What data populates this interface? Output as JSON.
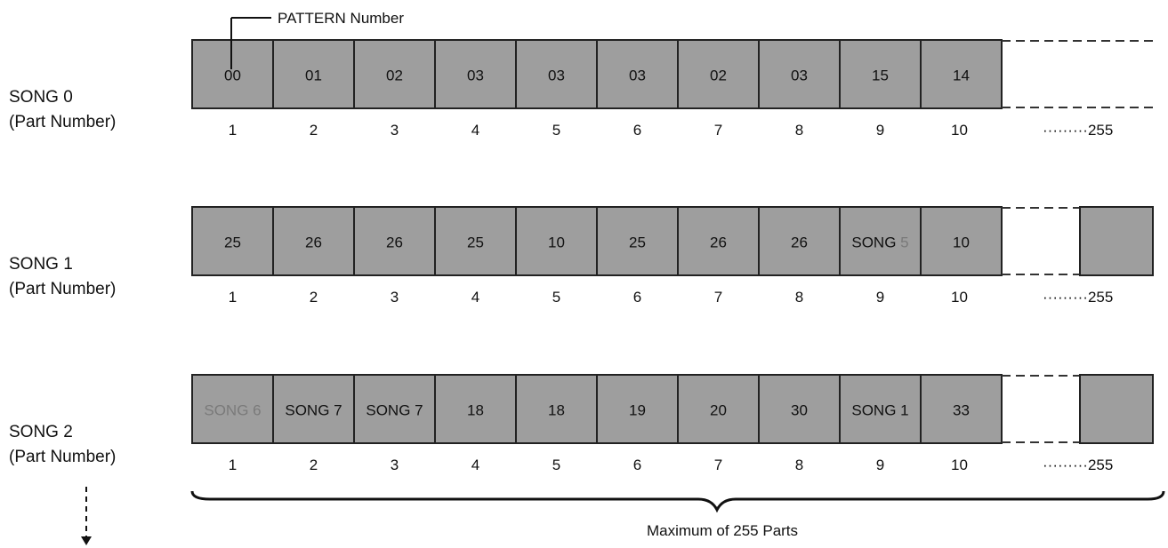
{
  "callout": {
    "pattern_number": "PATTERN Number"
  },
  "footer": {
    "maximum_label": "Maximum of 255 Parts"
  },
  "last_part_label": "·········255",
  "colors": {
    "cell_fill": "#9e9e9e",
    "cell_stroke": "#222222",
    "dim_text": "#7a7a7a"
  },
  "songs": [
    {
      "title": "SONG 0",
      "subtitle": "(Part Number)",
      "cells": [
        {
          "text": "00"
        },
        {
          "text": "01"
        },
        {
          "text": "02"
        },
        {
          "text": "03"
        },
        {
          "text": "03"
        },
        {
          "text": "03"
        },
        {
          "text": "02"
        },
        {
          "text": "03"
        },
        {
          "text": "15"
        },
        {
          "text": "14"
        }
      ],
      "parts": [
        "1",
        "2",
        "3",
        "4",
        "5",
        "6",
        "7",
        "8",
        "9",
        "10"
      ],
      "has_last_box": false
    },
    {
      "title": "SONG 1",
      "subtitle": "(Part Number)",
      "cells": [
        {
          "text": "25"
        },
        {
          "text": "26"
        },
        {
          "text": "26"
        },
        {
          "text": "25"
        },
        {
          "text": "10"
        },
        {
          "text": "25"
        },
        {
          "text": "26"
        },
        {
          "text": "26"
        },
        {
          "text": "SONG",
          "suffix": "5",
          "suffix_dim": true
        },
        {
          "text": "10"
        }
      ],
      "parts": [
        "1",
        "2",
        "3",
        "4",
        "5",
        "6",
        "7",
        "8",
        "9",
        "10"
      ],
      "has_last_box": true
    },
    {
      "title": "SONG 2",
      "subtitle": "(Part Number)",
      "cells": [
        {
          "text": "SONG",
          "suffix": "6",
          "prefix_dim": true
        },
        {
          "text": "SONG",
          "suffix": "7"
        },
        {
          "text": "SONG",
          "suffix": "7"
        },
        {
          "text": "18"
        },
        {
          "text": "18"
        },
        {
          "text": "19"
        },
        {
          "text": "20"
        },
        {
          "text": "30"
        },
        {
          "text": "SONG",
          "suffix": "1"
        },
        {
          "text": "33"
        }
      ],
      "parts": [
        "1",
        "2",
        "3",
        "4",
        "5",
        "6",
        "7",
        "8",
        "9",
        "10"
      ],
      "has_last_box": true
    }
  ]
}
